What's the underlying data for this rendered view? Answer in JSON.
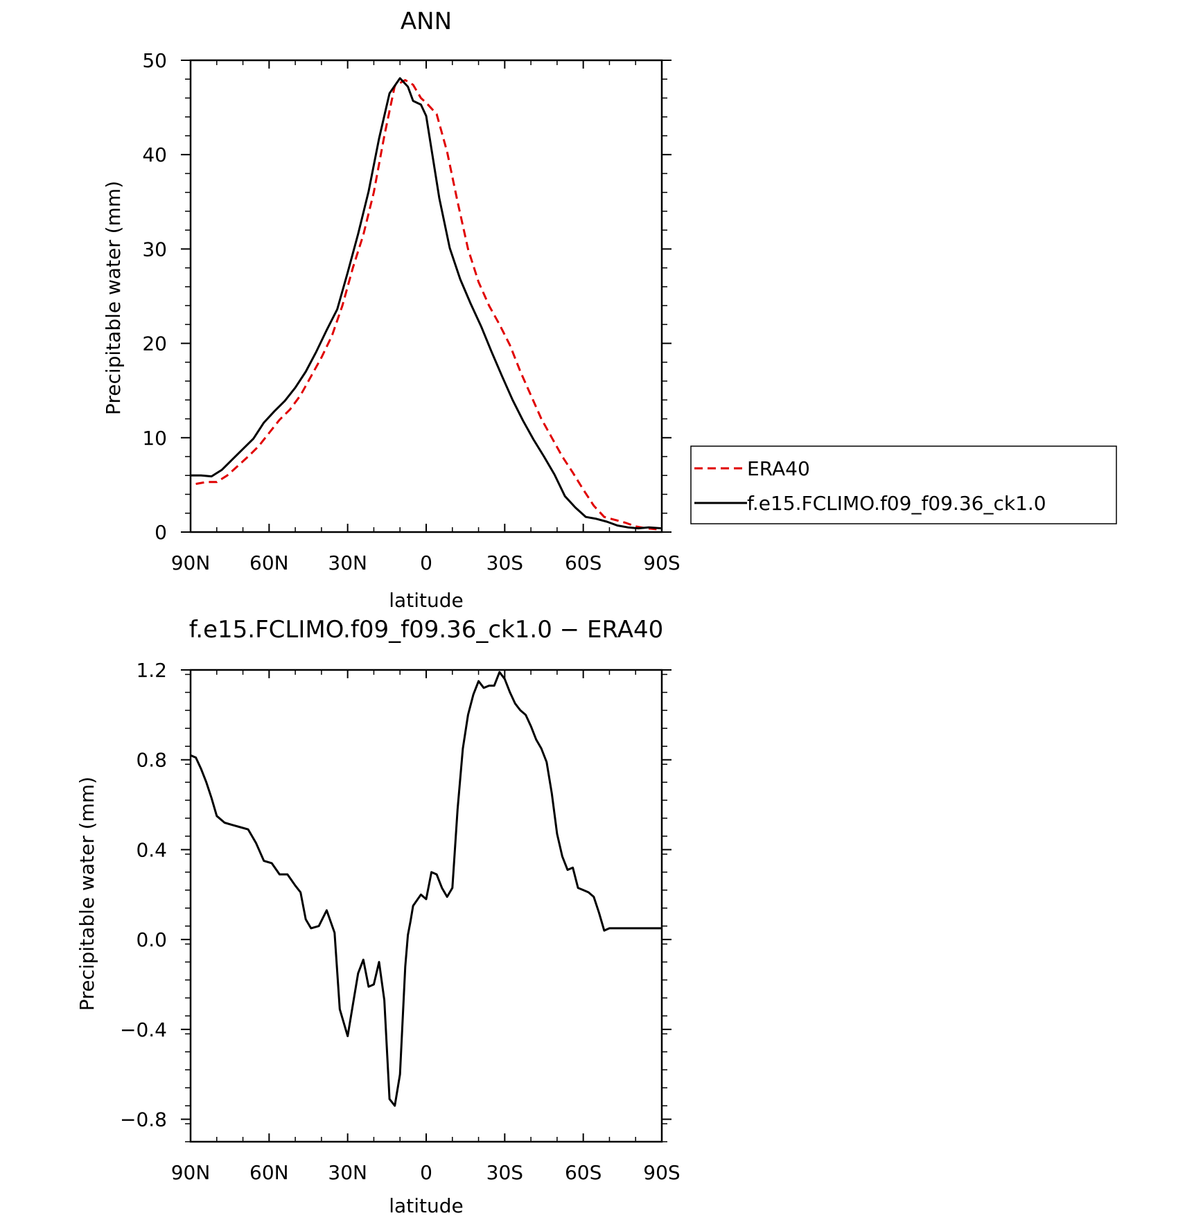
{
  "chart_data": [
    {
      "type": "line",
      "title": "ANN",
      "xlabel": "latitude",
      "ylabel": "Precipitable water (mm)",
      "xlim": [
        90,
        -90
      ],
      "ylim": [
        0,
        50
      ],
      "x_ticks": [
        {
          "value": 90,
          "label": "90N"
        },
        {
          "value": 60,
          "label": "60N"
        },
        {
          "value": 30,
          "label": "30N"
        },
        {
          "value": 0,
          "label": "0"
        },
        {
          "value": -30,
          "label": "30S"
        },
        {
          "value": -60,
          "label": "60S"
        },
        {
          "value": -90,
          "label": "90S"
        }
      ],
      "y_ticks": [
        {
          "value": 0,
          "label": "0"
        },
        {
          "value": 10,
          "label": "10"
        },
        {
          "value": 20,
          "label": "20"
        },
        {
          "value": 30,
          "label": "30"
        },
        {
          "value": 40,
          "label": "40"
        },
        {
          "value": 50,
          "label": "50"
        }
      ],
      "legend": {
        "position": "right"
      },
      "series": [
        {
          "name": "ERA40",
          "color": "#e00000",
          "dash": "dashed",
          "x": [
            88,
            84,
            80,
            76,
            72,
            68,
            64,
            60,
            56,
            52,
            48,
            44,
            40,
            36,
            32,
            28,
            24,
            20,
            16,
            12,
            8,
            5,
            2,
            0,
            -4,
            -8,
            -12,
            -16,
            -20,
            -24,
            -28,
            -32,
            -36,
            -40,
            -44,
            -48,
            -52,
            -56,
            -60,
            -64,
            -68,
            -72,
            -76,
            -80,
            -84,
            -88
          ],
          "y": [
            5.1,
            5.3,
            5.3,
            6.0,
            7.0,
            8.0,
            9.1,
            10.5,
            11.9,
            13.0,
            14.5,
            16.5,
            18.5,
            20.8,
            24.0,
            28.0,
            31.5,
            36.0,
            42.0,
            47.3,
            47.9,
            47.4,
            46.0,
            45.5,
            44.3,
            40.3,
            35.0,
            30.0,
            26.5,
            24.0,
            22.0,
            19.8,
            17.0,
            14.5,
            12.0,
            10.0,
            8.0,
            6.3,
            4.5,
            2.8,
            1.6,
            1.3,
            1.0,
            0.6,
            0.4,
            0.3
          ],
          "visible_points_note": ""
        },
        {
          "name": "f.e15.FCLIMO.f09_f09.36_ck1.0",
          "color": "#000000",
          "dash": "solid",
          "x": [
            90,
            86,
            82,
            78,
            74,
            70,
            66,
            62,
            58,
            54,
            50,
            46,
            42,
            38,
            34,
            30,
            26,
            22,
            18,
            14,
            10,
            7,
            5,
            2,
            0,
            -2,
            -5,
            -9,
            -13,
            -17,
            -21,
            -25,
            -29,
            -33,
            -37,
            -41,
            -45,
            -49,
            -53,
            -57,
            -61,
            -65,
            -69,
            -73,
            -77,
            -81,
            -85,
            -90
          ],
          "y": [
            6.0,
            6.0,
            5.9,
            6.6,
            7.7,
            8.8,
            9.9,
            11.6,
            12.8,
            13.9,
            15.3,
            17.0,
            19.1,
            21.4,
            23.6,
            27.5,
            31.6,
            36.1,
            41.7,
            46.5,
            48.1,
            47.2,
            45.7,
            45.3,
            44.1,
            40.6,
            35.4,
            30.1,
            26.8,
            24.2,
            21.8,
            19.1,
            16.5,
            14.0,
            11.8,
            9.8,
            8.0,
            6.1,
            3.8,
            2.6,
            1.6,
            1.4,
            1.1,
            0.7,
            0.5,
            0.4,
            0.5,
            0.4
          ]
        }
      ]
    },
    {
      "type": "line",
      "title": "f.e15.FCLIMO.f09_f09.36_ck1.0 − ERA40",
      "xlabel": "latitude",
      "ylabel": "Precipitable water (mm)",
      "xlim": [
        90,
        -90
      ],
      "ylim": [
        -0.9,
        1.2
      ],
      "x_ticks": [
        {
          "value": 90,
          "label": "90N"
        },
        {
          "value": 60,
          "label": "60N"
        },
        {
          "value": 30,
          "label": "30N"
        },
        {
          "value": 0,
          "label": "0"
        },
        {
          "value": -30,
          "label": "30S"
        },
        {
          "value": -60,
          "label": "60S"
        },
        {
          "value": -90,
          "label": "90S"
        }
      ],
      "y_ticks": [
        {
          "value": 1.2,
          "label": "1.2"
        },
        {
          "value": 0.8,
          "label": "0.8"
        },
        {
          "value": 0.4,
          "label": "0.4"
        },
        {
          "value": 0.0,
          "label": "0.0"
        },
        {
          "value": -0.4,
          "label": "−0.4"
        },
        {
          "value": -0.8,
          "label": "−0.8"
        }
      ],
      "series": [
        {
          "color": "#000000",
          "dash": "solid",
          "x": [
            90,
            88,
            86,
            84,
            82,
            80,
            77,
            74,
            71,
            68,
            65,
            62,
            59,
            56,
            53,
            50,
            48,
            46,
            44,
            41,
            38,
            35,
            33,
            30,
            28,
            26,
            24,
            22,
            20,
            18,
            16,
            14,
            12,
            10,
            9,
            8,
            7,
            6,
            5,
            2,
            0,
            -2,
            -4,
            -6,
            -8,
            -10,
            -12,
            -14,
            -16,
            -18,
            -20,
            -22,
            -24,
            -26,
            -28,
            -30,
            -32,
            -34,
            -36,
            -38,
            -40,
            -42,
            -44,
            -46,
            -48,
            -50,
            -52,
            -54,
            -56,
            -58,
            -60,
            -62,
            -64,
            -66,
            -68,
            -70,
            -72,
            -74,
            -76,
            -78,
            -80,
            -82,
            -84,
            -86,
            -88,
            -90
          ],
          "y": [
            0.82,
            0.81,
            0.76,
            0.7,
            0.63,
            0.55,
            0.52,
            0.51,
            0.5,
            0.49,
            0.43,
            0.35,
            0.34,
            0.29,
            0.29,
            0.24,
            0.21,
            0.09,
            0.05,
            0.06,
            0.13,
            0.03,
            -0.31,
            -0.43,
            -0.29,
            -0.15,
            -0.09,
            -0.21,
            -0.2,
            -0.1,
            -0.27,
            -0.71,
            -0.74,
            -0.6,
            -0.36,
            -0.12,
            0.02,
            0.08,
            0.15,
            0.2,
            0.18,
            0.3,
            0.29,
            0.23,
            0.19,
            0.23,
            0.58,
            0.85,
            1.0,
            1.09,
            1.15,
            1.12,
            1.13,
            1.13,
            1.19,
            1.16,
            1.1,
            1.05,
            1.02,
            1.0,
            0.95,
            0.89,
            0.85,
            0.79,
            0.65,
            0.47,
            0.37,
            0.31,
            0.32,
            0.23,
            0.22,
            0.21,
            0.19,
            0.12,
            0.04,
            0.05,
            0.05,
            0.05,
            0.05,
            0.05,
            0.05,
            0.05,
            0.05,
            0.05,
            0.05,
            0.05
          ]
        }
      ]
    }
  ]
}
